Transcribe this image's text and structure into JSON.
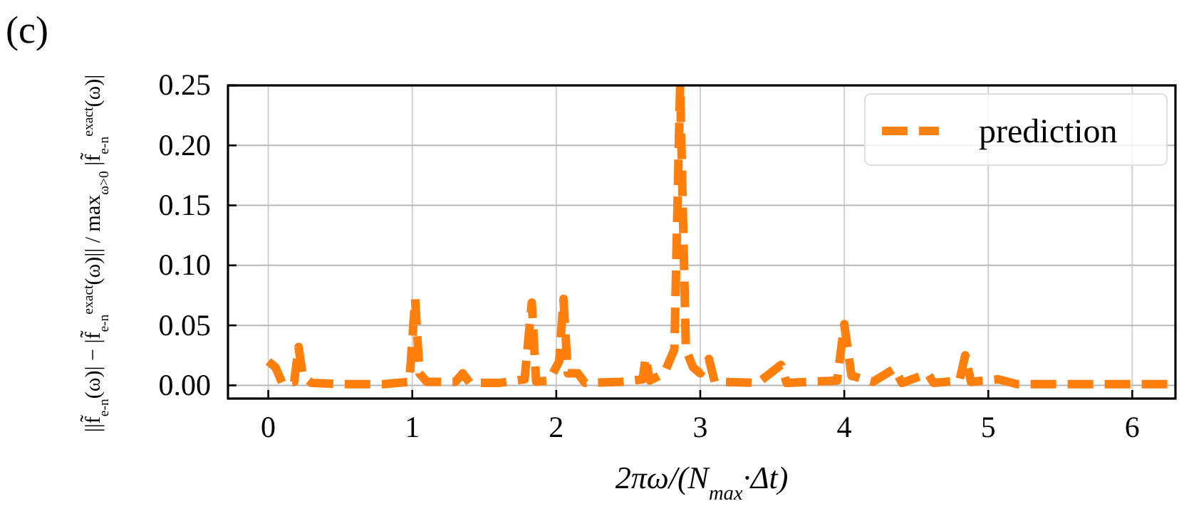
{
  "chart_data": {
    "type": "line",
    "title": "(c)",
    "xlabel": "2πω/(N$_{max}$·Δt)",
    "ylabel": "||f̃$_{e-n}$(ω)| − |f̃$_{e-n}$$^{exact}$(ω)|| / max$_{ω>0}$ |f̃$_{e-n}$$^{exact}$(ω)|",
    "xlim": [
      -0.28,
      6.3
    ],
    "xticks": [
      0,
      1,
      2,
      3,
      4,
      5,
      6
    ],
    "ylim": [
      -0.011,
      0.25
    ],
    "yticks": [
      {
        "value": 0,
        "label": "0.00"
      },
      {
        "value": 0.05,
        "label": "0.05"
      },
      {
        "value": 0.1,
        "label": "0.10"
      },
      {
        "value": 0.15,
        "label": "0.15"
      },
      {
        "value": 0.2,
        "label": "0.20"
      },
      {
        "value": 0.25,
        "label": "0.25"
      }
    ],
    "grid": true,
    "legend": "top right",
    "line_style": "dashed",
    "series": [
      {
        "name": "prediction",
        "color": "#ff7f0e",
        "x": [
          0,
          0.05,
          0.1,
          0.18,
          0.21,
          0.24,
          0.3,
          0.5,
          0.8,
          0.98,
          1.02,
          1.05,
          1.1,
          1.3,
          1.35,
          1.4,
          1.6,
          1.78,
          1.83,
          1.86,
          1.95,
          2.02,
          2.05,
          2.08,
          2.15,
          2.2,
          2.45,
          2.6,
          2.62,
          2.65,
          2.75,
          2.82,
          2.86,
          2.9,
          2.95,
          3.0,
          3.06,
          3.1,
          3.4,
          3.56,
          3.6,
          3.95,
          4.0,
          4.05,
          4.2,
          4.35,
          4.4,
          4.58,
          4.62,
          4.8,
          4.84,
          4.88,
          5.07,
          5.2,
          6.3
        ],
        "values": [
          0.02,
          0.015,
          0.001,
          0.003,
          0.032,
          0.008,
          0.002,
          0.001,
          0.001,
          0.003,
          0.072,
          0.01,
          0.003,
          0.003,
          0.01,
          0.002,
          0.002,
          0.005,
          0.069,
          0.003,
          0.004,
          0.02,
          0.072,
          0.01,
          0.01,
          0.002,
          0.003,
          0.005,
          0.023,
          0.004,
          0.01,
          0.03,
          0.25,
          0.03,
          0.015,
          0.01,
          0.022,
          0.003,
          0.002,
          0.017,
          0.002,
          0.004,
          0.051,
          0.008,
          0.003,
          0.014,
          0.002,
          0.01,
          0.002,
          0.004,
          0.025,
          0.003,
          0.005,
          0.001,
          0.001
        ]
      }
    ]
  }
}
